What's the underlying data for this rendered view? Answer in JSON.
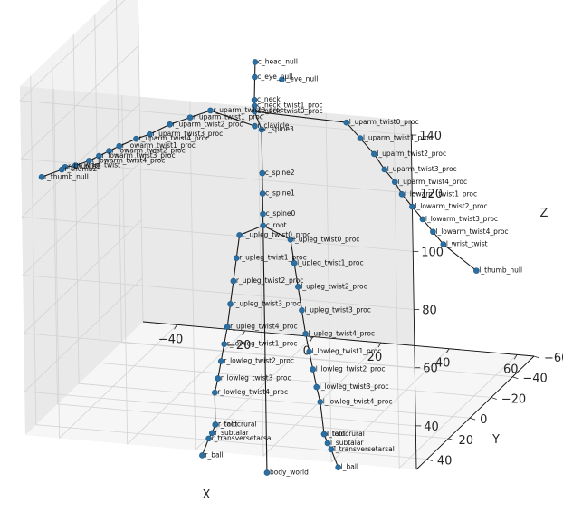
{
  "chart_data": {
    "type": "scatter",
    "projection": "3d",
    "title": "",
    "xlabel": "X",
    "ylabel": "Y",
    "zlabel": "Z",
    "xlim": [
      -50,
      65
    ],
    "ylim": [
      -60,
      50
    ],
    "zlim": [
      25,
      145
    ],
    "x_ticks": [
      "−40",
      "−20",
      "0",
      "20",
      "40",
      "60"
    ],
    "y_ticks": [
      "−60",
      "−40",
      "−20",
      "0",
      "20",
      "40"
    ],
    "z_ticks": [
      "40",
      "60",
      "80",
      "100",
      "120",
      "140"
    ],
    "x_tick_values": [
      -40,
      -20,
      0,
      20,
      40,
      60
    ],
    "y_tick_values": [
      -60,
      -40,
      -20,
      0,
      20,
      40
    ],
    "z_tick_values": [
      40,
      60,
      80,
      100,
      120,
      140
    ],
    "grid": true,
    "marker_color": "#1f77b4",
    "line_color": "#000000",
    "joints": [
      {
        "name": "c_head_null",
        "x": 5,
        "y": 5,
        "z": 143
      },
      {
        "name": "c_eye_null",
        "x": 0,
        "y": -10,
        "z": 132
      },
      {
        "name": "l_eye_null",
        "x": 8,
        "y": -10,
        "z": 132
      },
      {
        "name": "c_neck",
        "x": 3,
        "y": 0,
        "z": 128
      },
      {
        "name": "c_neck_twist1_proc",
        "x": 3,
        "y": 0,
        "z": 126
      },
      {
        "name": "c_neck_twist0_proc",
        "x": 3,
        "y": 0,
        "z": 124
      },
      {
        "name": "r_clavicle",
        "x": 3,
        "y": 0,
        "z": 119
      },
      {
        "name": "c_spine3",
        "x": 5,
        "y": 0,
        "z": 118
      },
      {
        "name": "c_spine2",
        "x": 5,
        "y": 0,
        "z": 103
      },
      {
        "name": "c_spine1",
        "x": 5,
        "y": 0,
        "z": 96
      },
      {
        "name": "c_spine0",
        "x": 5,
        "y": 0,
        "z": 89
      },
      {
        "name": "c_root",
        "x": 5,
        "y": 0,
        "z": 85
      },
      {
        "name": "r_uparm_twist0_proc",
        "x": -10,
        "y": 0,
        "z": 123
      },
      {
        "name": "r_uparm_twist1_proc",
        "x": -16,
        "y": 0,
        "z": 120
      },
      {
        "name": "r_uparm_twist2_proc",
        "x": -22,
        "y": 0,
        "z": 117
      },
      {
        "name": "r_uparm_twist3_proc",
        "x": -28,
        "y": 0,
        "z": 113
      },
      {
        "name": "r_uparm_twist4_proc",
        "x": -32,
        "y": 0,
        "z": 111
      },
      {
        "name": "r_lowarm_twist1_proc",
        "x": -37,
        "y": 0,
        "z": 108
      },
      {
        "name": "r_lowarm_twist2_proc",
        "x": -40,
        "y": 0,
        "z": 106
      },
      {
        "name": "r_lowarm_twist3_proc",
        "x": -43,
        "y": 0,
        "z": 104
      },
      {
        "name": "r_lowarm_twist4_proc",
        "x": -46,
        "y": 0,
        "z": 102
      },
      {
        "name": "r_wrist_twist",
        "x": -50,
        "y": 0,
        "z": 100
      },
      {
        "name": "r_thumb1",
        "x": -54,
        "y": -3,
        "z": 98
      },
      {
        "name": "r_thumb2",
        "x": -55,
        "y": -3,
        "z": 97
      },
      {
        "name": "r_thumb_null",
        "x": -60,
        "y": 0,
        "z": 95
      },
      {
        "name": "l_uparm_twist0_proc",
        "x": 30,
        "y": 0,
        "z": 123
      },
      {
        "name": "l_uparm_twist1_proc",
        "x": 34,
        "y": 0,
        "z": 118
      },
      {
        "name": "l_uparm_twist2_proc",
        "x": 38,
        "y": 0,
        "z": 113
      },
      {
        "name": "l_uparm_twist3_proc",
        "x": 41,
        "y": 0,
        "z": 108
      },
      {
        "name": "l_uparm_twist4_proc",
        "x": 44,
        "y": 0,
        "z": 104
      },
      {
        "name": "l_lowarm_twist1_proc",
        "x": 46,
        "y": 0,
        "z": 100
      },
      {
        "name": "l_lowarm_twist2_proc",
        "x": 49,
        "y": 0,
        "z": 96
      },
      {
        "name": "l_lowarm_twist3_proc",
        "x": 52,
        "y": 0,
        "z": 92
      },
      {
        "name": "l_lowarm_twist4_proc",
        "x": 55,
        "y": 0,
        "z": 88
      },
      {
        "name": "l_wrist_twist",
        "x": 58,
        "y": 0,
        "z": 84
      },
      {
        "name": "l_thumb_null",
        "x": 66,
        "y": -5,
        "z": 74
      },
      {
        "name": "c_upleg_twist0_proc",
        "x": -2,
        "y": 0,
        "z": 81
      },
      {
        "name": "r_upleg_twist1_proc",
        "x": -3,
        "y": 0,
        "z": 73
      },
      {
        "name": "r_upleg_twist2_proc",
        "x": -4,
        "y": 0,
        "z": 65
      },
      {
        "name": "r_upleg_twist3_proc",
        "x": -5,
        "y": 0,
        "z": 57
      },
      {
        "name": "r_upleg_twist4_proc",
        "x": -6,
        "y": 0,
        "z": 49
      },
      {
        "name": "r_lowleg_twist1_proc",
        "x": -7,
        "y": 0,
        "z": 43
      },
      {
        "name": "r_lowleg_twist2_proc",
        "x": -8,
        "y": 0,
        "z": 37
      },
      {
        "name": "r_lowleg_twist3_proc",
        "x": -9,
        "y": 0,
        "z": 31
      },
      {
        "name": "r_lowleg_twist4_proc",
        "x": -10,
        "y": 0,
        "z": 26
      },
      {
        "name": "r_foot",
        "x": -10,
        "y": 0,
        "z": 15
      },
      {
        "name": "r_talocrural",
        "x": -10,
        "y": 0,
        "z": 15
      },
      {
        "name": "r_subtalar",
        "x": -11,
        "y": 0,
        "z": 12
      },
      {
        "name": "r_transversetarsal",
        "x": -12,
        "y": 0,
        "z": 10
      },
      {
        "name": "r_ball",
        "x": -14,
        "y": 0,
        "z": 4
      },
      {
        "name": "l_upleg_twist0_proc",
        "x": 13,
        "y": 0,
        "z": 81
      },
      {
        "name": "l_upleg_twist1_proc",
        "x": 14,
        "y": 0,
        "z": 73
      },
      {
        "name": "l_upleg_twist2_proc",
        "x": 15,
        "y": 0,
        "z": 65
      },
      {
        "name": "l_upleg_twist3_proc",
        "x": 16,
        "y": 0,
        "z": 57
      },
      {
        "name": "l_upleg_twist4_proc",
        "x": 17,
        "y": 0,
        "z": 49
      },
      {
        "name": "l_lowleg_twist1_proc",
        "x": 18,
        "y": 0,
        "z": 43
      },
      {
        "name": "l_lowleg_twist2_proc",
        "x": 19,
        "y": 0,
        "z": 37
      },
      {
        "name": "l_lowleg_twist3_proc",
        "x": 20,
        "y": 0,
        "z": 31
      },
      {
        "name": "l_lowleg_twist4_proc",
        "x": 21,
        "y": 0,
        "z": 26
      },
      {
        "name": "l_foot",
        "x": 22,
        "y": 0,
        "z": 15
      },
      {
        "name": "l_talocrural",
        "x": 22,
        "y": 0,
        "z": 15
      },
      {
        "name": "l_subtalar",
        "x": 23,
        "y": 0,
        "z": 12
      },
      {
        "name": "l_transversetarsal",
        "x": 24,
        "y": 0,
        "z": 10
      },
      {
        "name": "l_ball",
        "x": 26,
        "y": 0,
        "z": 4
      },
      {
        "name": "body_world",
        "x": 5,
        "y": 0,
        "z": 0
      }
    ],
    "bones": [
      [
        "c_head_null",
        "c_neck"
      ],
      [
        "c_neck",
        "c_neck_twist1_proc"
      ],
      [
        "c_neck_twist1_proc",
        "c_neck_twist0_proc"
      ],
      [
        "c_neck_twist0_proc",
        "c_spine3"
      ],
      [
        "c_spine3",
        "c_spine2"
      ],
      [
        "c_spine2",
        "c_spine1"
      ],
      [
        "c_spine1",
        "c_spine0"
      ],
      [
        "c_spine0",
        "c_root"
      ],
      [
        "r_clavicle",
        "r_uparm_twist0_proc"
      ],
      [
        "r_uparm_twist0_proc",
        "r_uparm_twist1_proc"
      ],
      [
        "r_uparm_twist1_proc",
        "r_uparm_twist2_proc"
      ],
      [
        "r_uparm_twist2_proc",
        "r_uparm_twist3_proc"
      ],
      [
        "r_uparm_twist3_proc",
        "r_uparm_twist4_proc"
      ],
      [
        "r_uparm_twist4_proc",
        "r_lowarm_twist1_proc"
      ],
      [
        "r_lowarm_twist1_proc",
        "r_lowarm_twist2_proc"
      ],
      [
        "r_lowarm_twist2_proc",
        "r_lowarm_twist3_proc"
      ],
      [
        "r_lowarm_twist3_proc",
        "r_lowarm_twist4_proc"
      ],
      [
        "r_lowarm_twist4_proc",
        "r_wrist_twist"
      ],
      [
        "r_wrist_twist",
        "r_thumb1"
      ],
      [
        "r_thumb1",
        "r_thumb2"
      ],
      [
        "r_thumb2",
        "r_thumb_null"
      ],
      [
        "c_neck_twist0_proc",
        "l_uparm_twist0_proc"
      ],
      [
        "l_uparm_twist0_proc",
        "l_uparm_twist1_proc"
      ],
      [
        "l_uparm_twist1_proc",
        "l_uparm_twist2_proc"
      ],
      [
        "l_uparm_twist2_proc",
        "l_uparm_twist3_proc"
      ],
      [
        "l_uparm_twist3_proc",
        "l_uparm_twist4_proc"
      ],
      [
        "l_uparm_twist4_proc",
        "l_lowarm_twist1_proc"
      ],
      [
        "l_lowarm_twist1_proc",
        "l_lowarm_twist2_proc"
      ],
      [
        "l_lowarm_twist2_proc",
        "l_lowarm_twist3_proc"
      ],
      [
        "l_lowarm_twist3_proc",
        "l_lowarm_twist4_proc"
      ],
      [
        "l_lowarm_twist4_proc",
        "l_wrist_twist"
      ],
      [
        "l_wrist_twist",
        "l_thumb_null"
      ],
      [
        "c_root",
        "c_upleg_twist0_proc"
      ],
      [
        "c_upleg_twist0_proc",
        "r_upleg_twist1_proc"
      ],
      [
        "r_upleg_twist1_proc",
        "r_upleg_twist2_proc"
      ],
      [
        "r_upleg_twist2_proc",
        "r_upleg_twist3_proc"
      ],
      [
        "r_upleg_twist3_proc",
        "r_upleg_twist4_proc"
      ],
      [
        "r_upleg_twist4_proc",
        "r_lowleg_twist1_proc"
      ],
      [
        "r_lowleg_twist1_proc",
        "r_lowleg_twist2_proc"
      ],
      [
        "r_lowleg_twist2_proc",
        "r_lowleg_twist3_proc"
      ],
      [
        "r_lowleg_twist3_proc",
        "r_lowleg_twist4_proc"
      ],
      [
        "r_lowleg_twist4_proc",
        "r_foot"
      ],
      [
        "r_foot",
        "r_subtalar"
      ],
      [
        "r_subtalar",
        "r_transversetarsal"
      ],
      [
        "r_transversetarsal",
        "r_ball"
      ],
      [
        "c_root",
        "l_upleg_twist0_proc"
      ],
      [
        "l_upleg_twist0_proc",
        "l_upleg_twist1_proc"
      ],
      [
        "l_upleg_twist1_proc",
        "l_upleg_twist2_proc"
      ],
      [
        "l_upleg_twist2_proc",
        "l_upleg_twist3_proc"
      ],
      [
        "l_upleg_twist3_proc",
        "l_upleg_twist4_proc"
      ],
      [
        "l_upleg_twist4_proc",
        "l_lowleg_twist1_proc"
      ],
      [
        "l_lowleg_twist1_proc",
        "l_lowleg_twist2_proc"
      ],
      [
        "l_lowleg_twist2_proc",
        "l_lowleg_twist3_proc"
      ],
      [
        "l_lowleg_twist3_proc",
        "l_lowleg_twist4_proc"
      ],
      [
        "l_lowleg_twist4_proc",
        "l_foot"
      ],
      [
        "l_foot",
        "l_subtalar"
      ],
      [
        "l_subtalar",
        "l_transversetarsal"
      ],
      [
        "l_transversetarsal",
        "l_ball"
      ],
      [
        "c_root",
        "body_world"
      ]
    ]
  }
}
